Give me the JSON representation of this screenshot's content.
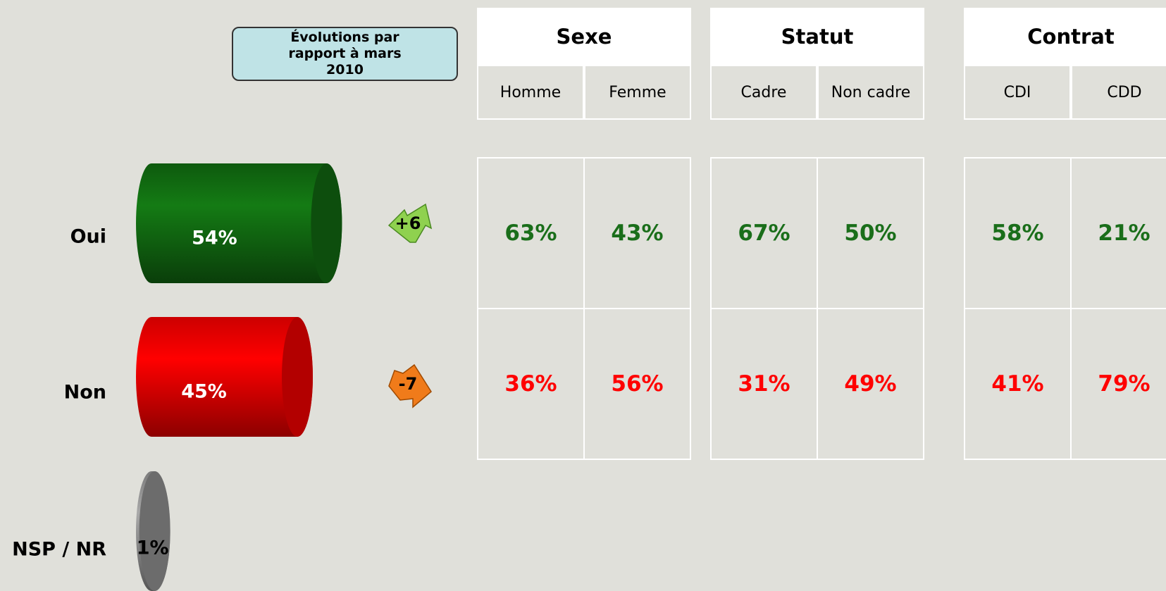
{
  "chart_data": {
    "type": "bar",
    "orientation": "horizontal",
    "categories": [
      "Oui",
      "Non",
      "NSP / NR"
    ],
    "values": [
      54,
      45,
      1
    ],
    "value_labels": [
      "54%",
      "45%",
      "1%"
    ],
    "colors": [
      "#127012",
      "#ff0000",
      "#9a9a9a"
    ]
  },
  "evolution": {
    "title": "Évolutions par rapport à mars 2010",
    "values": [
      6,
      -7
    ],
    "value_labels": [
      "+6",
      "-7"
    ]
  },
  "table": {
    "groups": [
      {
        "name": "Sexe",
        "columns": [
          "Homme",
          "Femme"
        ],
        "rows": [
          [
            "63%",
            "43%"
          ],
          [
            "36%",
            "56%"
          ]
        ]
      },
      {
        "name": "Statut",
        "columns": [
          "Cadre",
          "Non cadre"
        ],
        "rows": [
          [
            "67%",
            "50%"
          ],
          [
            "31%",
            "49%"
          ]
        ]
      },
      {
        "name": "Contrat",
        "columns": [
          "CDI",
          "CDD"
        ],
        "rows": [
          [
            "58%",
            "21%"
          ],
          [
            "41%",
            "79%"
          ]
        ]
      }
    ],
    "row_colors": [
      "#1a6e1a",
      "#ff0000"
    ]
  }
}
